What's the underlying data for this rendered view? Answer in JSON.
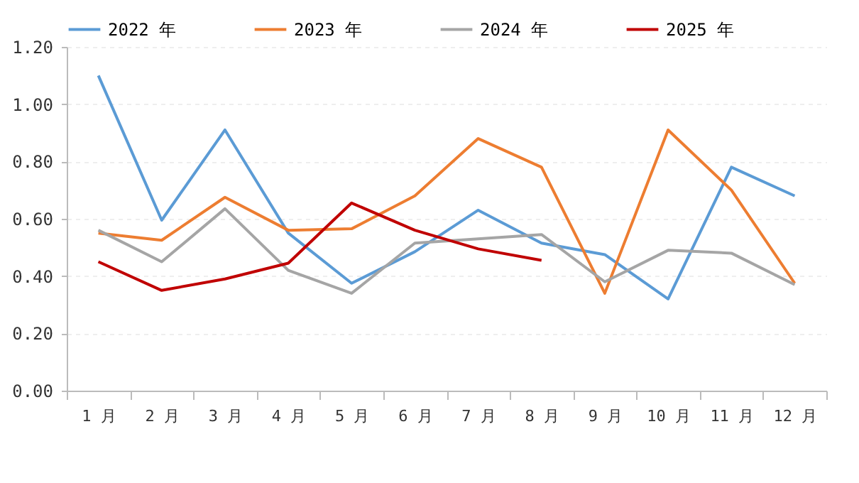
{
  "chart_data": {
    "type": "line",
    "categories": [
      "1 月",
      "2 月",
      "3 月",
      "4 月",
      "5 月",
      "6 月",
      "7 月",
      "8 月",
      "9 月",
      "10 月",
      "11 月",
      "12 月"
    ],
    "series": [
      {
        "name": "2022 年",
        "color": "#5b9bd5",
        "values": [
          1.1,
          0.595,
          0.91,
          0.55,
          0.375,
          0.485,
          0.63,
          0.515,
          0.475,
          0.32,
          0.78,
          0.68
        ]
      },
      {
        "name": "2023 年",
        "color": "#ed7d31",
        "values": [
          0.55,
          0.525,
          0.675,
          0.56,
          0.565,
          0.68,
          0.88,
          0.78,
          0.34,
          0.91,
          0.7,
          0.375
        ]
      },
      {
        "name": "2024 年",
        "color": "#a5a5a5",
        "values": [
          0.56,
          0.45,
          0.635,
          0.42,
          0.34,
          0.515,
          0.53,
          0.545,
          0.38,
          0.49,
          0.48,
          0.37
        ]
      },
      {
        "name": "2025 年",
        "color": "#c00000",
        "values": [
          0.45,
          0.35,
          0.39,
          0.445,
          0.655,
          0.56,
          0.495,
          0.455,
          null,
          null,
          null,
          null
        ]
      }
    ],
    "ylim": [
      0,
      1.2
    ],
    "yticks": [
      {
        "value": 0,
        "label": "0.00"
      },
      {
        "value": 0.2,
        "label": "0.20"
      },
      {
        "value": 0.4,
        "label": "0.40"
      },
      {
        "value": 0.6,
        "label": "0.60"
      },
      {
        "value": 0.8,
        "label": "0.80"
      },
      {
        "value": 1.0,
        "label": "1.00"
      },
      {
        "value": 1.2,
        "label": "1.20"
      }
    ],
    "grid": "y",
    "legend": "top",
    "line_style": "solid"
  }
}
